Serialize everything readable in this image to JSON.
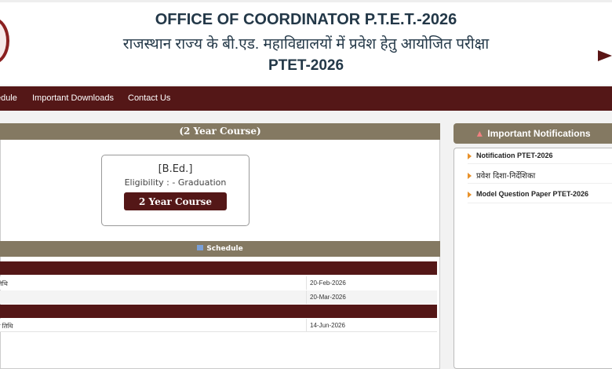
{
  "header": {
    "title_en": "OFFICE OF COORDINATOR P.T.E.T.-2026",
    "title_hi": "राजस्थान राज्य के बी.एड. महाविद्यालयों में प्रवेश हेतु आयोजित परीक्षा",
    "subtitle": "PTET-2026"
  },
  "nav": {
    "items": [
      {
        "label": "Schedule"
      },
      {
        "label": "Important Downloads"
      },
      {
        "label": "Contact Us"
      }
    ]
  },
  "course": {
    "section_title": "(2 Year Course)",
    "card_title": "[B.Ed.]",
    "eligibility": "Eligibility : - Graduation",
    "button": "2 Year Course"
  },
  "schedule": {
    "title": "Schedule",
    "rows": [
      {
        "label": "तिथि",
        "date": "20-Feb-2026"
      },
      {
        "label": "",
        "date": "20-Mar-2026"
      },
      {
        "label": "न तिथि",
        "date": "14-Jun-2026"
      }
    ]
  },
  "notifications": {
    "title": "Important Notifications",
    "items": [
      {
        "label": "Notification PTET-2026"
      },
      {
        "label": "प्रवेश दिशा-निर्देशिका"
      },
      {
        "label": "Model Question Paper PTET-2026"
      }
    ]
  },
  "colors": {
    "maroon": "#541717",
    "bar": "#847962",
    "title": "#233848",
    "bullet": "#e8912a"
  }
}
